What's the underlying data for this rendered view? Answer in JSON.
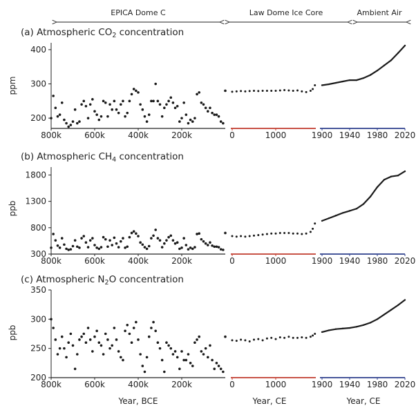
{
  "header": {
    "segments": [
      {
        "label": "EPICA Dome C"
      },
      {
        "label": "Law Dome Ice Core"
      },
      {
        "label": "Ambient Air"
      }
    ]
  },
  "colors": {
    "data": "#1a1a1a",
    "law_axis": "#c0392b",
    "air_axis": "#2c3e8c",
    "text": "#222222"
  },
  "x_labels": {
    "bce": "Year, BCE",
    "law": "Year, CE",
    "air": "Year, CE"
  },
  "x_ticks": {
    "bce": [
      "800k",
      "600k",
      "400k",
      "200k"
    ],
    "law": [
      "0",
      "1000"
    ],
    "air": [
      "1900",
      "1940",
      "1980",
      "2020"
    ]
  },
  "chart_data": [
    {
      "type": "scatter",
      "title_prefix": "(a) Atmospheric CO",
      "title_sub": "2",
      "title_suffix": " concentration",
      "ylabel": "ppm",
      "ylim": [
        170,
        420
      ],
      "yticks": [
        "200",
        "300",
        "400"
      ],
      "ytick_values": [
        200,
        300,
        400
      ],
      "epica": {
        "x_kyr_bce": [
          800,
          790,
          780,
          770,
          760,
          750,
          740,
          730,
          720,
          710,
          700,
          690,
          680,
          670,
          660,
          650,
          640,
          630,
          620,
          610,
          600,
          590,
          580,
          570,
          560,
          550,
          540,
          530,
          520,
          510,
          500,
          490,
          480,
          470,
          460,
          450,
          440,
          430,
          420,
          410,
          400,
          390,
          380,
          370,
          360,
          350,
          340,
          330,
          320,
          310,
          300,
          290,
          280,
          270,
          260,
          250,
          240,
          230,
          220,
          210,
          200,
          190,
          180,
          170,
          160,
          150,
          140,
          130,
          120,
          110,
          100,
          90,
          80,
          70,
          60,
          50,
          40,
          30,
          20,
          10,
          0
        ],
        "y": [
          200,
          265,
          230,
          205,
          210,
          245,
          195,
          185,
          175,
          180,
          190,
          225,
          185,
          190,
          240,
          250,
          235,
          200,
          240,
          255,
          220,
          210,
          195,
          205,
          250,
          245,
          205,
          240,
          225,
          250,
          225,
          215,
          240,
          250,
          205,
          215,
          250,
          270,
          285,
          280,
          275,
          240,
          225,
          205,
          190,
          210,
          250,
          250,
          300,
          250,
          240,
          205,
          230,
          240,
          250,
          260,
          245,
          230,
          235,
          190,
          200,
          245,
          210,
          185,
          195,
          190,
          200,
          270,
          275,
          245,
          240,
          230,
          220,
          230,
          215,
          210,
          210,
          205,
          190,
          185,
          280
        ]
      },
      "law": {
        "x_ce": [
          0,
          100,
          200,
          300,
          400,
          500,
          600,
          700,
          800,
          900,
          1000,
          1100,
          1200,
          1300,
          1400,
          1500,
          1600,
          1700,
          1800,
          1850,
          1900
        ],
        "y": [
          277,
          278,
          279,
          278,
          279,
          280,
          279,
          280,
          280,
          280,
          280,
          281,
          282,
          281,
          280,
          281,
          278,
          276,
          280,
          285,
          296
        ]
      },
      "air": {
        "x_ce": [
          1900,
          1910,
          1920,
          1930,
          1940,
          1950,
          1960,
          1970,
          1980,
          1990,
          2000,
          2010,
          2020
        ],
        "y": [
          296,
          299,
          303,
          307,
          311,
          311,
          317,
          326,
          339,
          354,
          369,
          390,
          412
        ]
      }
    },
    {
      "type": "scatter",
      "title_prefix": "(b) Atmospheric CH",
      "title_sub": "4",
      "title_suffix": " concentration",
      "ylabel": "ppb",
      "ylim": [
        300,
        1950
      ],
      "yticks": [
        "300",
        "800",
        "1300",
        "1800"
      ],
      "ytick_values": [
        300,
        800,
        1300,
        1800
      ],
      "epica": {
        "x_kyr_bce": [
          800,
          790,
          780,
          770,
          760,
          750,
          740,
          730,
          720,
          710,
          700,
          690,
          680,
          670,
          660,
          650,
          640,
          630,
          620,
          610,
          600,
          590,
          580,
          570,
          560,
          550,
          540,
          530,
          520,
          510,
          500,
          490,
          480,
          470,
          460,
          450,
          440,
          430,
          420,
          410,
          400,
          390,
          380,
          370,
          360,
          350,
          340,
          330,
          320,
          310,
          300,
          290,
          280,
          270,
          260,
          250,
          240,
          230,
          220,
          210,
          200,
          190,
          180,
          170,
          160,
          150,
          140,
          130,
          120,
          110,
          100,
          90,
          80,
          70,
          60,
          50,
          40,
          30,
          20,
          10,
          0
        ],
        "y": [
          420,
          680,
          560,
          460,
          420,
          600,
          480,
          400,
          380,
          390,
          450,
          560,
          440,
          420,
          600,
          640,
          520,
          430,
          560,
          600,
          470,
          420,
          400,
          430,
          620,
          580,
          440,
          560,
          470,
          610,
          500,
          430,
          540,
          600,
          420,
          440,
          620,
          700,
          730,
          690,
          640,
          520,
          480,
          430,
          400,
          450,
          600,
          650,
          760,
          600,
          560,
          430,
          500,
          560,
          620,
          650,
          560,
          500,
          520,
          400,
          420,
          600,
          470,
          390,
          420,
          400,
          430,
          680,
          690,
          580,
          540,
          500,
          470,
          520,
          460,
          440,
          440,
          430,
          390,
          380,
          700
        ]
      },
      "law": {
        "x_ce": [
          0,
          100,
          200,
          300,
          400,
          500,
          600,
          700,
          800,
          900,
          1000,
          1100,
          1200,
          1300,
          1400,
          1500,
          1600,
          1700,
          1800,
          1850,
          1900
        ],
        "y": [
          640,
          630,
          640,
          630,
          640,
          650,
          660,
          670,
          680,
          690,
          690,
          700,
          700,
          700,
          690,
          690,
          680,
          690,
          720,
          780,
          880
        ]
      },
      "air": {
        "x_ce": [
          1900,
          1910,
          1920,
          1930,
          1940,
          1950,
          1960,
          1970,
          1980,
          1990,
          2000,
          2010,
          2020
        ],
        "y": [
          930,
          980,
          1030,
          1080,
          1120,
          1160,
          1250,
          1390,
          1570,
          1710,
          1770,
          1790,
          1870
        ]
      }
    },
    {
      "type": "scatter",
      "title_prefix": "(c) Atmospheric N",
      "title_sub": "2",
      "title_suffix": "O concentration",
      "ylabel": "ppb",
      "ylim": [
        200,
        350
      ],
      "yticks": [
        "200",
        "250",
        "300",
        "350"
      ],
      "ytick_values": [
        200,
        250,
        300,
        350
      ],
      "epica": {
        "x_kyr_bce": [
          800,
          790,
          780,
          770,
          760,
          750,
          740,
          730,
          720,
          710,
          700,
          690,
          680,
          670,
          660,
          650,
          640,
          630,
          620,
          610,
          600,
          590,
          580,
          570,
          560,
          550,
          540,
          530,
          520,
          510,
          500,
          490,
          480,
          470,
          460,
          450,
          440,
          430,
          420,
          410,
          400,
          390,
          380,
          370,
          360,
          350,
          340,
          330,
          320,
          310,
          300,
          290,
          280,
          270,
          260,
          250,
          240,
          230,
          220,
          210,
          200,
          190,
          180,
          170,
          160,
          150,
          140,
          130,
          120,
          110,
          100,
          90,
          80,
          70,
          60,
          50,
          40,
          30,
          20,
          10,
          0
        ],
        "y": [
          300,
          285,
          265,
          240,
          250,
          270,
          250,
          235,
          260,
          275,
          255,
          215,
          240,
          265,
          270,
          275,
          260,
          285,
          265,
          245,
          270,
          280,
          260,
          255,
          240,
          275,
          265,
          250,
          255,
          285,
          265,
          245,
          235,
          230,
          280,
          290,
          275,
          260,
          285,
          295,
          265,
          240,
          220,
          210,
          235,
          270,
          285,
          295,
          280,
          260,
          250,
          230,
          210,
          260,
          255,
          250,
          240,
          245,
          235,
          215,
          245,
          230,
          230,
          240,
          225,
          220,
          260,
          265,
          270,
          245,
          240,
          250,
          235,
          255,
          230,
          215,
          225,
          220,
          215,
          210,
          270
        ]
      },
      "law": {
        "x_ce": [
          0,
          100,
          200,
          300,
          400,
          500,
          600,
          700,
          800,
          900,
          1000,
          1100,
          1200,
          1300,
          1400,
          1500,
          1600,
          1700,
          1800,
          1850,
          1900
        ],
        "y": [
          264,
          263,
          265,
          264,
          262,
          265,
          266,
          264,
          267,
          268,
          266,
          269,
          268,
          270,
          268,
          268,
          269,
          268,
          270,
          272,
          275
        ]
      },
      "air": {
        "x_ce": [
          1900,
          1910,
          1920,
          1930,
          1940,
          1950,
          1960,
          1970,
          1980,
          1990,
          2000,
          2010,
          2020
        ],
        "y": [
          278,
          281,
          283,
          284,
          285,
          287,
          290,
          294,
          300,
          308,
          316,
          324,
          333
        ]
      }
    }
  ]
}
